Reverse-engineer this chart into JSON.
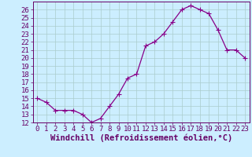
{
  "x": [
    0,
    1,
    2,
    3,
    4,
    5,
    6,
    7,
    8,
    9,
    10,
    11,
    12,
    13,
    14,
    15,
    16,
    17,
    18,
    19,
    20,
    21,
    22,
    23
  ],
  "y": [
    15,
    14.5,
    13.5,
    13.5,
    13.5,
    13,
    12,
    12.5,
    14,
    15.5,
    17.5,
    18,
    21.5,
    22,
    23,
    24.5,
    26,
    26.5,
    26,
    25.5,
    23.5,
    21,
    21,
    20
  ],
  "line_color": "#880088",
  "marker": "+",
  "marker_size": 4,
  "bg_color": "#cceeff",
  "grid_color": "#aacccc",
  "xlabel": "Windchill (Refroidissement éolien,°C)",
  "xlim": [
    -0.5,
    23.5
  ],
  "ylim": [
    12,
    27
  ],
  "yticks": [
    12,
    13,
    14,
    15,
    16,
    17,
    18,
    19,
    20,
    21,
    22,
    23,
    24,
    25,
    26
  ],
  "xticks": [
    0,
    1,
    2,
    3,
    4,
    5,
    6,
    7,
    8,
    9,
    10,
    11,
    12,
    13,
    14,
    15,
    16,
    17,
    18,
    19,
    20,
    21,
    22,
    23
  ],
  "xlabel_fontsize": 7.5,
  "tick_fontsize": 6.5,
  "axis_color": "#660066",
  "spine_color": "#660066",
  "line_width": 0.9
}
